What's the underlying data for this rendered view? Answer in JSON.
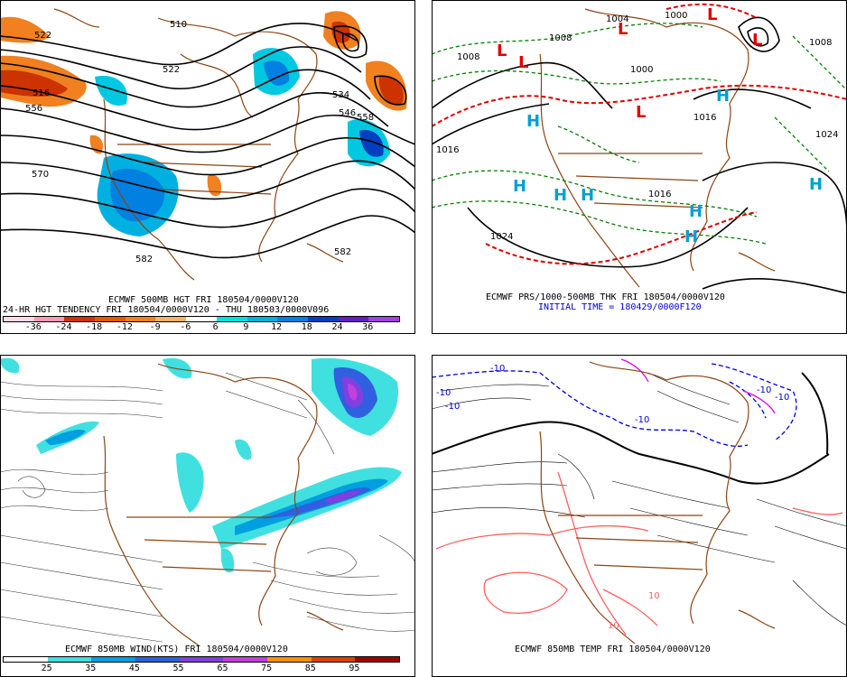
{
  "panels": {
    "tl": {
      "caption1": "ECMWF 500MB HGT FRI 180504/0000V120",
      "caption2": "24-HR HGT TENDENCY FRI 180504/0000V120 - THU 180503/0000V096",
      "contour_labels": [
        "522",
        "516",
        "556",
        "570",
        "510",
        "522",
        "534",
        "546",
        "558",
        "582",
        "582"
      ],
      "colorbar": {
        "ticks": [
          "-36",
          "-24",
          "-18",
          "-12",
          "-9",
          "-6",
          "6",
          "9",
          "12",
          "18",
          "24",
          "36"
        ],
        "colors": [
          "#ffd9e6",
          "#ff99b3",
          "#cc3300",
          "#e05a00",
          "#f08020",
          "#ffb060",
          "#ffffff",
          "#00e0e0",
          "#00b0e0",
          "#0080e0",
          "#0040c0",
          "#6020c0",
          "#a040e0"
        ]
      }
    },
    "tr": {
      "caption1": "ECMWF PRS/1000-500MB THK FRI 180504/0000V120",
      "caption2": "INITIAL TIME = 180429/0000F120",
      "labels": [
        "1008",
        "1008",
        "1004",
        "1000",
        "1000",
        "1008",
        "1016",
        "1024",
        "1024",
        "1016",
        "1016"
      ],
      "highs": [
        "H",
        "H",
        "H",
        "H",
        "H",
        "H",
        "H",
        "H"
      ],
      "lows": [
        "L",
        "L",
        "L",
        "L",
        "L",
        "L"
      ]
    },
    "bl": {
      "caption1": "ECMWF 850MB WIND(KTS) FRI 180504/0000V120",
      "colorbar": {
        "ticks": [
          "25",
          "35",
          "45",
          "55",
          "65",
          "75",
          "85",
          "95"
        ],
        "colors": [
          "#ffffff",
          "#40e0e0",
          "#00a0e0",
          "#3060e0",
          "#8040e0",
          "#c040e0",
          "#ff9000",
          "#e04000",
          "#a00000"
        ]
      }
    },
    "br": {
      "caption1": "ECMWF 850MB TEMP FRI 180504/0000V120",
      "labels": [
        "-10",
        "-10",
        "-10",
        "-10",
        "-10",
        "-10",
        "10",
        "10"
      ]
    }
  },
  "colors": {
    "coast": "#8b4513",
    "contour": "#000000",
    "thickness_green": "#008000",
    "thickness_red": "#e00000",
    "cold_blue": "#0000e0",
    "warm_red": "#ff6060",
    "magenta": "#e000e0"
  }
}
